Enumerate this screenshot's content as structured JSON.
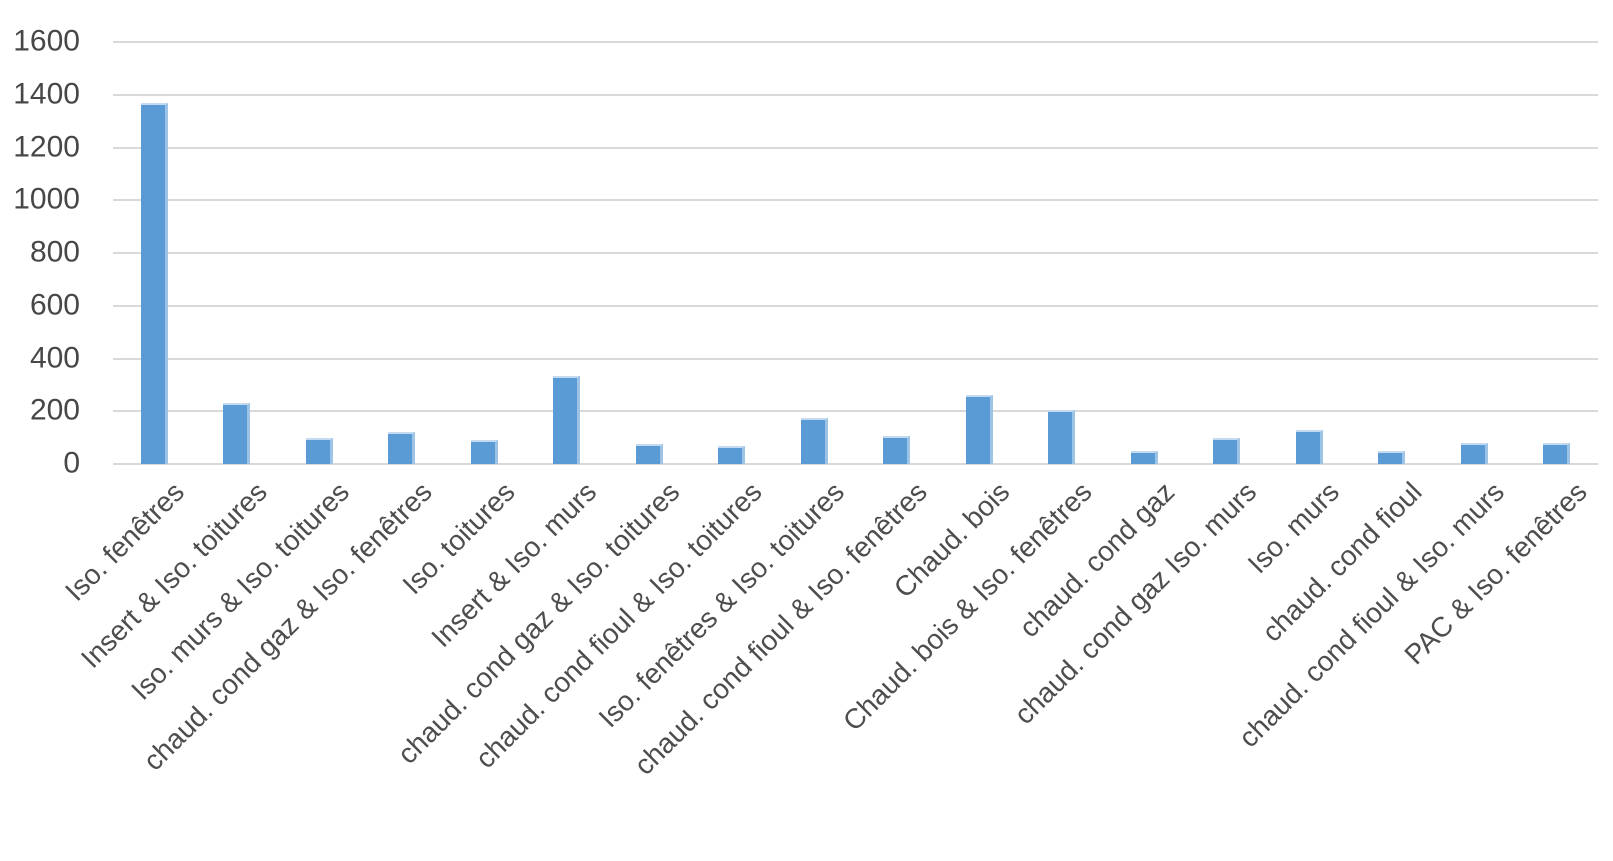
{
  "chart_data": {
    "type": "bar",
    "title": "",
    "xlabel": "",
    "ylabel": "",
    "categories": [
      "Iso. fenêtres",
      "Insert & Iso. toitures",
      "Iso. murs & Iso. toitures",
      "chaud. cond gaz & Iso. fenêtres",
      "Iso. toitures",
      "Insert & Iso. murs",
      "chaud. cond gaz & Iso. toitures",
      "chaud. cond fioul & Iso. toitures",
      "Iso. fenêtres & Iso. toitures",
      "chaud. cond fioul & Iso. fenêtres",
      "Chaud. bois",
      "Chaud. bois & Iso. fenêtres",
      "chaud. cond gaz",
      "chaud. cond gaz Iso. murs",
      "Iso. murs",
      "chaud. cond fioul",
      "chaud. cond fioul & Iso. murs",
      "PAC & Iso. fenêtres"
    ],
    "values": [
      1370,
      230,
      100,
      120,
      90,
      335,
      75,
      70,
      175,
      105,
      260,
      205,
      50,
      100,
      130,
      50,
      80,
      80
    ],
    "ylim": [
      0,
      1600
    ],
    "yticks": [
      0,
      200,
      400,
      600,
      800,
      1000,
      1200,
      1400,
      1600
    ],
    "grid": true,
    "legend": false,
    "x_label_rotation_deg": 45,
    "bar_color": "#5B9BD5",
    "bar_edge_right_color": "#9DC3E6",
    "bar_edge_top_color": "#C3DAF1",
    "gridline_color": "#D9D9D9",
    "axis_line_color": "#D9D9D9",
    "ytick_label_color": "#474747",
    "xtick_label_color": "#4D4D4D",
    "background_color": "#FFFFFF"
  }
}
